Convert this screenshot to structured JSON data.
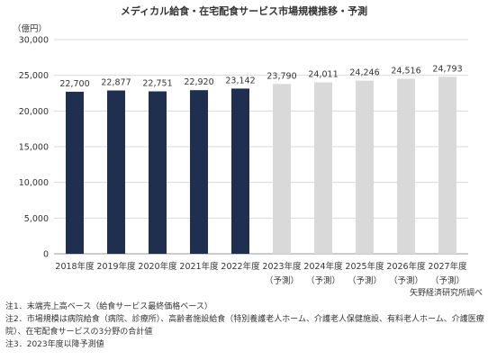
{
  "chart_data": {
    "type": "bar",
    "title": "メディカル給食・在宅配食サービス市場規模推移・予測",
    "unit": "（億円）",
    "categories": [
      "2018年度",
      "2019年度",
      "2020年度",
      "2021年度",
      "2022年度",
      "2023年度",
      "2024年度",
      "2025年度",
      "2026年度",
      "2027年度"
    ],
    "sublabels": [
      "",
      "",
      "",
      "",
      "",
      "（予測）",
      "（予測）",
      "（予測）",
      "（予測）",
      "（予測）"
    ],
    "values": [
      22700,
      22877,
      22751,
      22920,
      23142,
      23790,
      24011,
      24246,
      24516,
      24793
    ],
    "value_labels": [
      "22,700",
      "22,877",
      "22,751",
      "22,920",
      "23,142",
      "23,790",
      "24,011",
      "24,246",
      "24,516",
      "24,793"
    ],
    "kinds": [
      "actual",
      "actual",
      "actual",
      "actual",
      "actual",
      "forecast",
      "forecast",
      "forecast",
      "forecast",
      "forecast"
    ],
    "ylim": [
      0,
      30000
    ],
    "yticks": [
      0,
      5000,
      10000,
      15000,
      20000,
      25000,
      30000
    ],
    "ytick_labels": [
      "0",
      "5,000",
      "10,000",
      "15,000",
      "20,000",
      "25,000",
      "30,000"
    ],
    "grid": true,
    "colors": {
      "actual": "#1f2f4f",
      "forecast": "#d9d9d9",
      "grid": "#d9d9d9",
      "axis": "#999999"
    }
  },
  "source": "矢野経済研究所調べ",
  "notes": [
    "注1．末端売上高ベース（給食サービス最終価格ベース）",
    "注2．市場規模は病院給食（病院、診療所）、高齢者施設給食（特別養護老人ホーム、介護老人保健施設、有料老人ホーム、介護医療院）、在宅配食サービスの3分野の合計値",
    "注3．2023年度以降予測値"
  ]
}
